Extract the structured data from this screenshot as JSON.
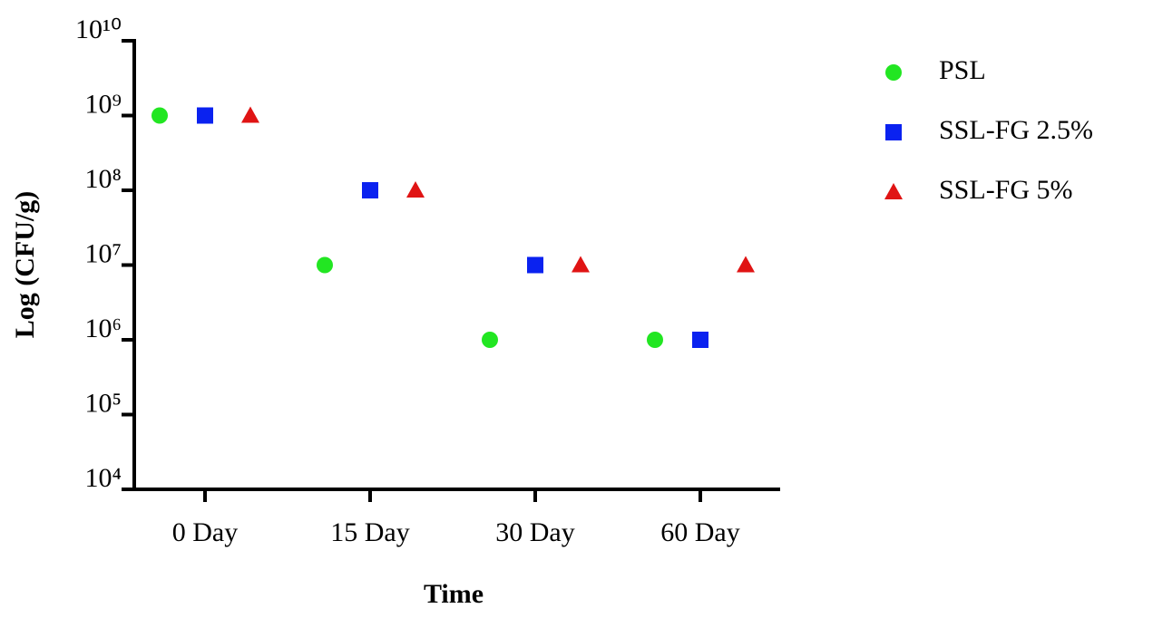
{
  "chart_data": {
    "type": "scatter",
    "xlabel": "Time",
    "ylabel": "Log (CFU/g)",
    "categories": [
      "0 Day",
      "15 Day",
      "30 Day",
      "60 Day"
    ],
    "series": [
      {
        "name": "PSL",
        "color": "#22e622",
        "marker": "circle",
        "values": [
          1000000000,
          10000000,
          1000000,
          1000000
        ]
      },
      {
        "name": "SSL-FG 2.5%",
        "color": "#0a22f0",
        "marker": "square",
        "values": [
          1000000000,
          100000000,
          10000000,
          1000000
        ]
      },
      {
        "name": "SSL-FG 5%",
        "color": "#e01414",
        "marker": "triangle",
        "values": [
          1000000000,
          100000000,
          10000000,
          10000000
        ]
      }
    ],
    "ylim": [
      10000,
      10000000000
    ],
    "ylog": true,
    "yticks": [
      {
        "value": 10000,
        "label": "10⁴"
      },
      {
        "value": 100000,
        "label": "10⁵"
      },
      {
        "value": 1000000,
        "label": "10⁶"
      },
      {
        "value": 10000000,
        "label": "10⁷"
      },
      {
        "value": 100000000,
        "label": "10⁸"
      },
      {
        "value": 1000000000,
        "label": "10⁹"
      },
      {
        "value": 10000000000,
        "label": "10¹⁰"
      }
    ],
    "grid": false,
    "legend": "right"
  }
}
